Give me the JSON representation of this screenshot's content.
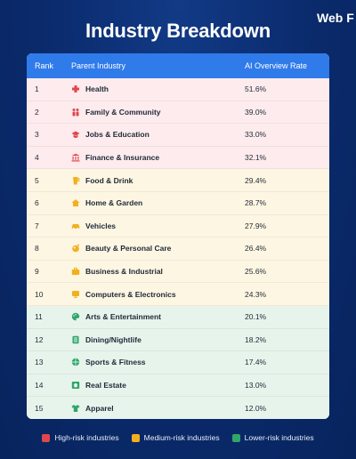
{
  "brand": {
    "text": "Web F"
  },
  "title": "Industry Breakdown",
  "table": {
    "headers": {
      "rank": "Rank",
      "industry": "Parent Industry",
      "rate": "AI Overview Rate"
    },
    "rows": [
      {
        "rank": "1",
        "industry": "Health",
        "rate": "51.6%",
        "risk": "high",
        "icon": "health-cross-icon"
      },
      {
        "rank": "2",
        "industry": "Family & Community",
        "rate": "39.0%",
        "risk": "high",
        "icon": "family-icon"
      },
      {
        "rank": "3",
        "industry": "Jobs & Education",
        "rate": "33.0%",
        "risk": "high",
        "icon": "graduation-cap-icon"
      },
      {
        "rank": "4",
        "industry": "Finance & Insurance",
        "rate": "32.1%",
        "risk": "high",
        "icon": "bank-icon"
      },
      {
        "rank": "5",
        "industry": "Food & Drink",
        "rate": "29.4%",
        "risk": "medium",
        "icon": "food-icon"
      },
      {
        "rank": "6",
        "industry": "Home & Garden",
        "rate": "28.7%",
        "risk": "medium",
        "icon": "home-icon"
      },
      {
        "rank": "7",
        "industry": "Vehicles",
        "rate": "27.9%",
        "risk": "medium",
        "icon": "car-icon"
      },
      {
        "rank": "8",
        "industry": "Beauty & Personal Care",
        "rate": "26.4%",
        "risk": "medium",
        "icon": "beauty-icon"
      },
      {
        "rank": "9",
        "industry": "Business & Industrial",
        "rate": "25.6%",
        "risk": "medium",
        "icon": "briefcase-icon"
      },
      {
        "rank": "10",
        "industry": "Computers & Electronics",
        "rate": "24.3%",
        "risk": "medium",
        "icon": "computer-icon"
      },
      {
        "rank": "11",
        "industry": "Arts & Entertainment",
        "rate": "20.1%",
        "risk": "low",
        "icon": "palette-icon"
      },
      {
        "rank": "12",
        "industry": "Dining/Nightlife",
        "rate": "18.2%",
        "risk": "low",
        "icon": "menu-icon"
      },
      {
        "rank": "13",
        "industry": "Sports & Fitness",
        "rate": "17.4%",
        "risk": "low",
        "icon": "ball-icon"
      },
      {
        "rank": "14",
        "industry": "Real Estate",
        "rate": "13.0%",
        "risk": "low",
        "icon": "real-estate-icon"
      },
      {
        "rank": "15",
        "industry": "Apparel",
        "rate": "12.0%",
        "risk": "low",
        "icon": "shirt-icon"
      }
    ]
  },
  "legend": [
    {
      "label": "High-risk industries",
      "color": "#e0474c"
    },
    {
      "label": "Medium-risk industries",
      "color": "#f2b01e"
    },
    {
      "label": "Lower-risk industries",
      "color": "#2fa66a"
    }
  ],
  "colors": {
    "high_icon": "#e0474c",
    "medium_icon": "#f2b01e",
    "low_icon": "#2fa66a",
    "header": "#2f7bea"
  }
}
